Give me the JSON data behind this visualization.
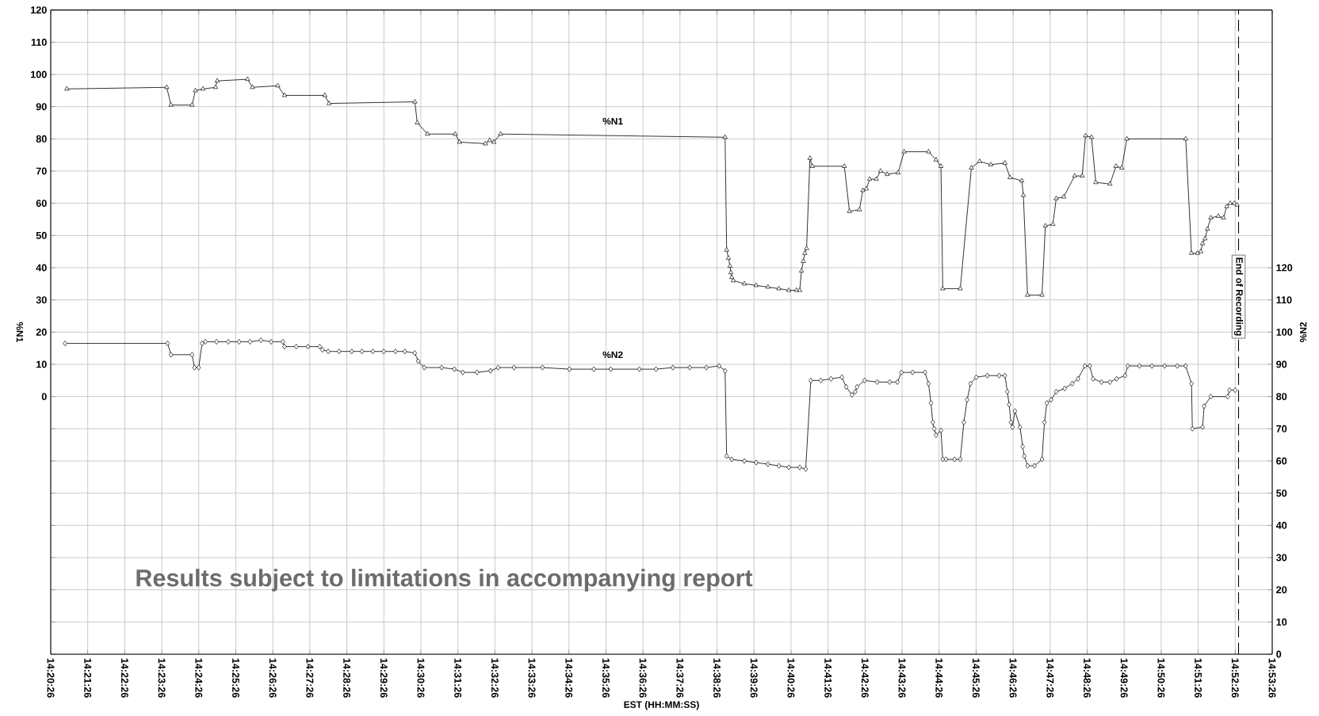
{
  "chart_data": {
    "type": "line",
    "xlabel": "EST  (HH:MM:SS)",
    "ylabel": "%N1",
    "y2label": "%N2",
    "xlim": [
      14.34056,
      14.89056
    ],
    "xticks": [
      {
        "value": 14.34056,
        "label": "14:20:26"
      },
      {
        "value": 14.35722,
        "label": "14:21:26"
      },
      {
        "value": 14.37389,
        "label": "14:22:26"
      },
      {
        "value": 14.39056,
        "label": "14:23:26"
      },
      {
        "value": 14.40722,
        "label": "14:24:26"
      },
      {
        "value": 14.42389,
        "label": "14:25:26"
      },
      {
        "value": 14.44056,
        "label": "14:26:26"
      },
      {
        "value": 14.45722,
        "label": "14:27:26"
      },
      {
        "value": 14.47389,
        "label": "14:28:26"
      },
      {
        "value": 14.49056,
        "label": "14:29:26"
      },
      {
        "value": 14.50722,
        "label": "14:30:26"
      },
      {
        "value": 14.52389,
        "label": "14:31:26"
      },
      {
        "value": 14.54056,
        "label": "14:32:26"
      },
      {
        "value": 14.55722,
        "label": "14:33:26"
      },
      {
        "value": 14.57389,
        "label": "14:34:26"
      },
      {
        "value": 14.59056,
        "label": "14:35:26"
      },
      {
        "value": 14.60722,
        "label": "14:36:26"
      },
      {
        "value": 14.62389,
        "label": "14:37:26"
      },
      {
        "value": 14.64056,
        "label": "14:38:26"
      },
      {
        "value": 14.65722,
        "label": "14:39:26"
      },
      {
        "value": 14.67389,
        "label": "14:40:26"
      },
      {
        "value": 14.69056,
        "label": "14:41:26"
      },
      {
        "value": 14.70722,
        "label": "14:42:26"
      },
      {
        "value": 14.72389,
        "label": "14:43:26"
      },
      {
        "value": 14.74056,
        "label": "14:44:26"
      },
      {
        "value": 14.75722,
        "label": "14:45:26"
      },
      {
        "value": 14.77389,
        "label": "14:46:26"
      },
      {
        "value": 14.79056,
        "label": "14:47:26"
      },
      {
        "value": 14.80722,
        "label": "14:48:26"
      },
      {
        "value": 14.82389,
        "label": "14:49:26"
      },
      {
        "value": 14.84056,
        "label": "14:50:26"
      },
      {
        "value": 14.85722,
        "label": "14:51:26"
      },
      {
        "value": 14.87389,
        "label": "14:52:26"
      },
      {
        "value": 14.89056,
        "label": "14:53:26"
      }
    ],
    "ylim": [
      -80,
      120
    ],
    "yticks": [
      {
        "value": -80,
        "label": null
      },
      {
        "value": -70,
        "label": null
      },
      {
        "value": -60,
        "label": null
      },
      {
        "value": -50,
        "label": null
      },
      {
        "value": -40,
        "label": null
      },
      {
        "value": -30,
        "label": null
      },
      {
        "value": -20,
        "label": null
      },
      {
        "value": -10,
        "label": null
      },
      0,
      10,
      20,
      30,
      40,
      50,
      60,
      70,
      80,
      90,
      100,
      110,
      120
    ],
    "y2lim": [
      0,
      200
    ],
    "y2ticks": [
      0,
      10,
      20,
      30,
      40,
      50,
      60,
      70,
      80,
      90,
      100,
      110,
      120
    ],
    "grid": true,
    "line_style": "solid",
    "series": [
      {
        "name": "%N1",
        "color": "#000000",
        "marker": "triangle",
        "axis": "y",
        "x": [
          14.3478,
          14.3928,
          14.3947,
          14.4042,
          14.4057,
          14.4091,
          14.4148,
          14.4155,
          14.4292,
          14.4314,
          14.4428,
          14.4458,
          14.464,
          14.4659,
          14.5045,
          14.5056,
          14.5102,
          14.5227,
          14.5246,
          14.5363,
          14.5382,
          14.5401,
          14.5431,
          14.6442,
          14.6449,
          14.6457,
          14.6464,
          14.6468,
          14.6472,
          14.6479,
          14.6529,
          14.6582,
          14.6635,
          14.6684,
          14.6729,
          14.6763,
          14.6778,
          14.6786,
          14.6794,
          14.6801,
          14.6809,
          14.6824,
          14.6835,
          14.6979,
          14.7002,
          14.7047,
          14.7062,
          14.7078,
          14.7093,
          14.7123,
          14.7142,
          14.7172,
          14.7221,
          14.7248,
          14.7358,
          14.7392,
          14.7414,
          14.7422,
          14.7501,
          14.7551,
          14.7588,
          14.7638,
          14.7702,
          14.7725,
          14.7778,
          14.7785,
          14.7804,
          14.7869,
          14.7884,
          14.7918,
          14.7933,
          14.7967,
          14.8016,
          14.805,
          14.8065,
          14.8092,
          14.8111,
          14.8175,
          14.8202,
          14.8228,
          14.8251,
          14.8516,
          14.8542,
          14.8569,
          14.8584,
          14.8592,
          14.8603,
          14.8614,
          14.8629,
          14.8663,
          14.8686,
          14.8701,
          14.8716,
          14.8735,
          14.8747
        ],
        "values": [
          95.5,
          96,
          90.5,
          90.5,
          95,
          95.5,
          96,
          98,
          98.5,
          96,
          96.5,
          93.5,
          93.5,
          91,
          91.5,
          85,
          81.5,
          81.5,
          79,
          78.5,
          79.5,
          79,
          81.5,
          80.5,
          45.5,
          43,
          40.5,
          38.5,
          37,
          36,
          35,
          34.5,
          34,
          33.5,
          33,
          33,
          33,
          39,
          42,
          44.5,
          46,
          74,
          71.5,
          71.5,
          57.5,
          58,
          64,
          64.5,
          67.5,
          67.5,
          70,
          69,
          69.5,
          76,
          76,
          73.5,
          71.5,
          33.5,
          33.5,
          71,
          73,
          72,
          72.5,
          68,
          67,
          62.5,
          31.5,
          31.5,
          53,
          53.5,
          61.5,
          62,
          68.5,
          68.5,
          81,
          80.5,
          66.5,
          66,
          71.5,
          71,
          80,
          80,
          44.5,
          44.5,
          45,
          47.5,
          49,
          52,
          55.5,
          56,
          55.5,
          59,
          60,
          60,
          59.5
        ]
      },
      {
        "name": "%N2",
        "color": "#000000",
        "marker": "diamond",
        "axis": "y2",
        "x": [
          14.347,
          14.3932,
          14.3947,
          14.4042,
          14.4053,
          14.4072,
          14.4087,
          14.4102,
          14.4152,
          14.4205,
          14.4254,
          14.4303,
          14.4352,
          14.4398,
          14.4451,
          14.4458,
          14.4511,
          14.4564,
          14.4617,
          14.4629,
          14.4655,
          14.4704,
          14.4761,
          14.4807,
          14.4856,
          14.4905,
          14.4958,
          14.5,
          14.5045,
          14.506,
          14.5087,
          14.5166,
          14.5223,
          14.5261,
          14.5325,
          14.5386,
          14.542,
          14.5492,
          14.562,
          14.5741,
          14.5851,
          14.5927,
          14.6056,
          14.6131,
          14.6207,
          14.6283,
          14.6358,
          14.6415,
          14.6442,
          14.6449,
          14.6472,
          14.6529,
          14.6582,
          14.6635,
          14.6684,
          14.6729,
          14.6778,
          14.6805,
          14.6828,
          14.6873,
          14.6919,
          14.6968,
          14.6987,
          14.7013,
          14.7028,
          14.7036,
          14.707,
          14.7127,
          14.7183,
          14.7218,
          14.7236,
          14.7286,
          14.7342,
          14.7358,
          14.7369,
          14.7377,
          14.7384,
          14.7392,
          14.7414,
          14.7422,
          14.7437,
          14.7475,
          14.7501,
          14.7517,
          14.7532,
          14.7547,
          14.7573,
          14.7623,
          14.7676,
          14.7702,
          14.7713,
          14.7721,
          14.7729,
          14.7736,
          14.7747,
          14.777,
          14.7782,
          14.7789,
          14.7804,
          14.7835,
          14.7869,
          14.788,
          14.7891,
          14.791,
          14.7933,
          14.7971,
          14.8005,
          14.8031,
          14.8062,
          14.8084,
          14.8099,
          14.8137,
          14.8175,
          14.8205,
          14.8243,
          14.8255,
          14.8308,
          14.8364,
          14.8421,
          14.8478,
          14.8516,
          14.8542,
          14.8546,
          14.8592,
          14.8599,
          14.8629,
          14.8705,
          14.8713,
          14.8739
        ],
        "values": [
          96.5,
          96.5,
          93,
          93,
          89,
          89,
          96.5,
          97,
          97,
          97,
          97,
          97,
          97.5,
          97,
          97,
          95.5,
          95.5,
          95.5,
          95.5,
          94.5,
          94,
          94,
          94,
          94,
          94,
          94,
          94,
          94,
          93.5,
          91,
          89,
          89,
          88.5,
          87.5,
          87.5,
          88,
          89,
          89,
          89,
          88.5,
          88.5,
          88.5,
          88.5,
          88.5,
          89,
          89,
          89,
          89.5,
          88,
          61.5,
          60.5,
          60,
          59.5,
          59,
          58.5,
          58,
          58,
          57.5,
          85,
          85,
          85.5,
          86,
          83,
          80.5,
          81.5,
          83,
          85,
          84.5,
          84.5,
          84.5,
          87.5,
          87.5,
          87.5,
          84,
          78,
          72,
          70,
          68,
          69.5,
          60.5,
          60.5,
          60.5,
          60.5,
          72,
          79,
          84,
          86,
          86.5,
          86.5,
          86.5,
          81.5,
          77.5,
          72,
          70.5,
          75.5,
          70.5,
          64.5,
          61.5,
          58.5,
          58.5,
          60.5,
          72,
          78,
          79,
          81.5,
          82.5,
          84,
          85.5,
          89.5,
          89.5,
          85.5,
          84.5,
          84.5,
          85.5,
          86.5,
          89.5,
          89.5,
          89.5,
          89.5,
          89.5,
          89.5,
          84,
          70,
          70.5,
          77,
          80,
          80,
          82,
          82
        ]
      }
    ],
    "ref_lines": [
      {
        "axis": "x",
        "value": 14.8754,
        "label": "End of Recording",
        "line_style": "dashed",
        "color": "#000000"
      }
    ],
    "annotations": [
      "Results subject to limitations in accompanying report"
    ]
  }
}
